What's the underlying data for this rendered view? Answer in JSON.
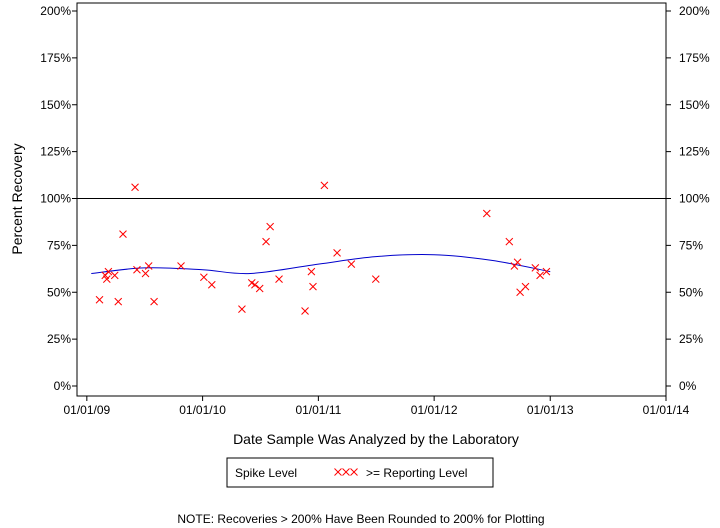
{
  "chart_data": {
    "type": "scatter",
    "xlabel": "Date Sample Was Analyzed by the Laboratory",
    "ylabel": "Percent Recovery",
    "ylim": [
      0,
      200
    ],
    "xlim": [
      "2008-12-01",
      "2014-01-01"
    ],
    "y_ticks": [
      0,
      25,
      50,
      75,
      100,
      125,
      150,
      175,
      200
    ],
    "y_tick_labels": [
      "0%",
      "25%",
      "50%",
      "75%",
      "100%",
      "125%",
      "150%",
      "175%",
      "200%"
    ],
    "x_ticks": [
      "2009-01-01",
      "2010-01-01",
      "2011-01-01",
      "2012-01-01",
      "2013-01-01",
      "2014-01-01"
    ],
    "x_tick_labels": [
      "01/01/09",
      "01/01/10",
      "01/01/11",
      "01/01/12",
      "01/01/13",
      "01/01/14"
    ],
    "reference_line": {
      "y": 100,
      "color": "#000000"
    },
    "series": [
      {
        "name": ">= Reporting Level",
        "marker": "x",
        "color": "#ff0000",
        "points": [
          {
            "x": "2009-02-10",
            "y": 46
          },
          {
            "x": "2009-02-28",
            "y": 59
          },
          {
            "x": "2009-03-05",
            "y": 57
          },
          {
            "x": "2009-03-10",
            "y": 61
          },
          {
            "x": "2009-03-30",
            "y": 59
          },
          {
            "x": "2009-04-10",
            "y": 45
          },
          {
            "x": "2009-04-25",
            "y": 81
          },
          {
            "x": "2009-06-02",
            "y": 106
          },
          {
            "x": "2009-06-08",
            "y": 62
          },
          {
            "x": "2009-07-05",
            "y": 60
          },
          {
            "x": "2009-07-15",
            "y": 64
          },
          {
            "x": "2009-08-01",
            "y": 45
          },
          {
            "x": "2009-10-25",
            "y": 64
          },
          {
            "x": "2010-01-05",
            "y": 58
          },
          {
            "x": "2010-01-30",
            "y": 54
          },
          {
            "x": "2010-05-05",
            "y": 41
          },
          {
            "x": "2010-06-05",
            "y": 55
          },
          {
            "x": "2010-06-15",
            "y": 54
          },
          {
            "x": "2010-06-30",
            "y": 52
          },
          {
            "x": "2010-07-20",
            "y": 77
          },
          {
            "x": "2010-08-02",
            "y": 85
          },
          {
            "x": "2010-08-30",
            "y": 57
          },
          {
            "x": "2010-11-20",
            "y": 40
          },
          {
            "x": "2010-12-10",
            "y": 61
          },
          {
            "x": "2010-12-15",
            "y": 53
          },
          {
            "x": "2011-01-20",
            "y": 107
          },
          {
            "x": "2011-03-01",
            "y": 71
          },
          {
            "x": "2011-04-15",
            "y": 65
          },
          {
            "x": "2011-07-01",
            "y": 57
          },
          {
            "x": "2012-06-15",
            "y": 92
          },
          {
            "x": "2012-08-25",
            "y": 77
          },
          {
            "x": "2012-09-10",
            "y": 64
          },
          {
            "x": "2012-09-20",
            "y": 66
          },
          {
            "x": "2012-09-28",
            "y": 50
          },
          {
            "x": "2012-10-15",
            "y": 53
          },
          {
            "x": "2012-11-15",
            "y": 63
          },
          {
            "x": "2012-11-30",
            "y": 59
          },
          {
            "x": "2012-12-20",
            "y": 61
          }
        ]
      },
      {
        "name": "trend",
        "type": "line",
        "color": "#0000cc",
        "points": [
          {
            "x": "2009-01-15",
            "y": 60
          },
          {
            "x": "2009-07-01",
            "y": 63
          },
          {
            "x": "2010-01-01",
            "y": 62
          },
          {
            "x": "2010-06-01",
            "y": 60
          },
          {
            "x": "2011-01-01",
            "y": 65
          },
          {
            "x": "2011-07-01",
            "y": 69
          },
          {
            "x": "2012-01-01",
            "y": 70
          },
          {
            "x": "2012-07-01",
            "y": 67
          },
          {
            "x": "2013-01-01",
            "y": 61
          }
        ]
      }
    ],
    "legend": {
      "placement": "bottom",
      "entries": [
        {
          "label": "Spike Level",
          "marker": "none"
        },
        {
          "label": ">= Reporting Level",
          "marker": "xxx",
          "color": "#ff0000"
        }
      ]
    },
    "note": "NOTE: Recoveries > 200% Have Been Rounded to 200% for Plotting",
    "grid": false
  }
}
